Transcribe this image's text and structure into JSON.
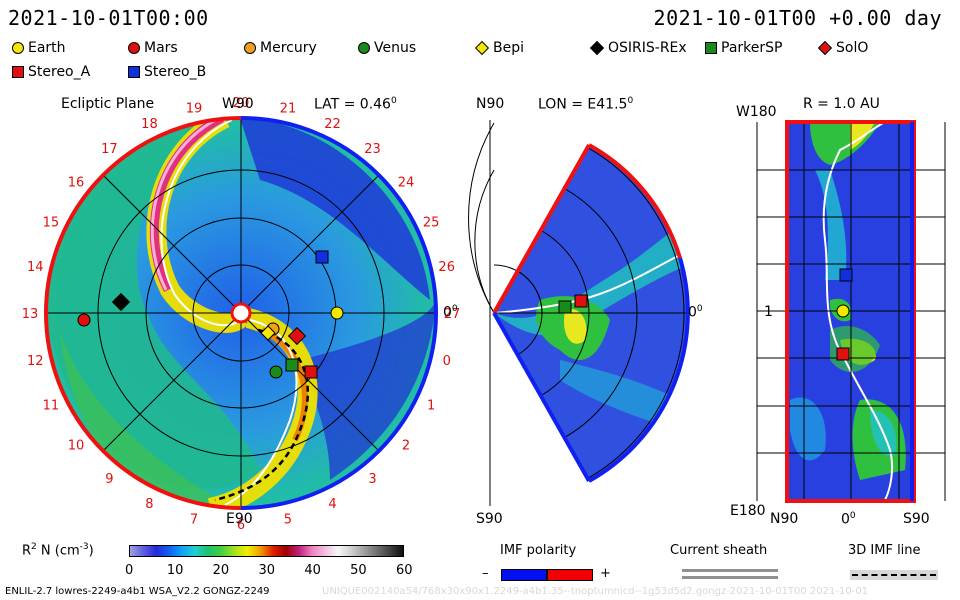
{
  "header": {
    "date_left": "2021-10-01T00:00",
    "date_right": "2021-10-01T00 +0.00 day"
  },
  "legend": {
    "items": [
      {
        "label": "Earth",
        "shape": "circle",
        "color": "#f5e800",
        "icon": "earth-icon"
      },
      {
        "label": "Mars",
        "shape": "circle",
        "color": "#e01010",
        "icon": "mars-icon"
      },
      {
        "label": "Mercury",
        "shape": "circle",
        "color": "#f0a020",
        "icon": "mercury-icon"
      },
      {
        "label": "Venus",
        "shape": "circle",
        "color": "#1a8a1a",
        "icon": "venus-icon"
      },
      {
        "label": "Bepi",
        "shape": "diamond",
        "color": "#f5e800",
        "icon": "bepi-icon"
      },
      {
        "label": "OSIRIS-REx",
        "shape": "diamond",
        "color": "#000000",
        "icon": "osiris-rex-icon"
      },
      {
        "label": "ParkerSP",
        "shape": "square",
        "color": "#1a8a1a",
        "icon": "parkersp-icon"
      },
      {
        "label": "SolO",
        "shape": "diamond",
        "color": "#e01010",
        "icon": "solo-icon"
      },
      {
        "label": "Stereo_A",
        "shape": "square",
        "color": "#e01010",
        "icon": "stereo-a-icon"
      },
      {
        "label": "Stereo_B",
        "shape": "square",
        "color": "#1030e0",
        "icon": "stereo-b-icon"
      }
    ]
  },
  "panels": {
    "ecliptic": {
      "title": "Ecliptic Plane",
      "top_label": "W90",
      "bottom_label": "E90",
      "lat_label": "LAT = 0.46",
      "degree_mark": "0",
      "right_label": "0",
      "carrington_ticks": [
        "20",
        "21",
        "22",
        "23",
        "24",
        "25",
        "26",
        "27",
        "0",
        "1",
        "2",
        "3",
        "4",
        "5",
        "6",
        "7",
        "8",
        "9",
        "10",
        "11",
        "12",
        "13",
        "14",
        "15",
        "16",
        "17",
        "18",
        "19"
      ]
    },
    "meridional": {
      "top_left": "N90",
      "lon_label": "LON = E41.5",
      "degree_mark": "0",
      "bottom_left": "S90",
      "right_label": "0"
    },
    "radial": {
      "title": "R = 1.0 AU",
      "top_left": "W180",
      "mid_left": "1",
      "bottom_left": "E180",
      "x_left": "N90",
      "x_mid": "0",
      "x_right": "S90"
    }
  },
  "colorbar": {
    "label": "R",
    "label_sup": "2",
    "label_rest": " N (cm",
    "label_exp": "-3",
    "label_close": ")",
    "ticks": [
      "0",
      "10",
      "20",
      "30",
      "40",
      "50",
      "60"
    ],
    "colors": [
      "#a0a0e8",
      "#6060e0",
      "#2828d8",
      "#1060f0",
      "#10a0f8",
      "#20d0d0",
      "#20c070",
      "#40d040",
      "#a0e020",
      "#f0f000",
      "#f0a000",
      "#e02000",
      "#a00000",
      "#c02080",
      "#f080c0",
      "#f0c0e0",
      "#f8f8f8",
      "#d0d0d0",
      "#a0a0a0",
      "#707070",
      "#404040",
      "#101010"
    ]
  },
  "imf": {
    "title": "IMF polarity",
    "minus": "–",
    "plus": "+",
    "neg_color": "#0010f0",
    "pos_color": "#f00000"
  },
  "current_sheath": {
    "title": "Current sheath"
  },
  "imf_line": {
    "title": "3D IMF line"
  },
  "footer": {
    "left": "ENLIL-2.7 lowres-2249-a4b1 WSA_V2.2 GONGZ-2249",
    "right": "UNIQUE002140a54/768x30x90x1.2249-a4b1.35--tnoptumnicd--1g53d5d2.gongz-2021-10-01T00    2021-10-01"
  },
  "chart_data": {
    "type": "heatmap",
    "quantity": "R2 N (cm-3)",
    "color_range": [
      0,
      60
    ],
    "bodies": [
      {
        "name": "Earth",
        "shape": "circle",
        "color": "#f5e800"
      },
      {
        "name": "Mars",
        "shape": "circle",
        "color": "#e01010"
      },
      {
        "name": "Mercury",
        "shape": "circle",
        "color": "#f0a020"
      },
      {
        "name": "Venus",
        "shape": "circle",
        "color": "#1a8a1a"
      },
      {
        "name": "Bepi",
        "shape": "diamond",
        "color": "#f5e800"
      },
      {
        "name": "OSIRIS-REx",
        "shape": "diamond",
        "color": "#000000"
      },
      {
        "name": "ParkerSP",
        "shape": "square",
        "color": "#1a8a1a"
      },
      {
        "name": "SolO",
        "shape": "diamond",
        "color": "#e01010"
      },
      {
        "name": "Stereo_A",
        "shape": "square",
        "color": "#e01010"
      },
      {
        "name": "Stereo_B",
        "shape": "square",
        "color": "#1030e0"
      }
    ],
    "latitude_deg": 0.46,
    "longitude_deg_east": 41.5,
    "radius_au": 1.0
  }
}
